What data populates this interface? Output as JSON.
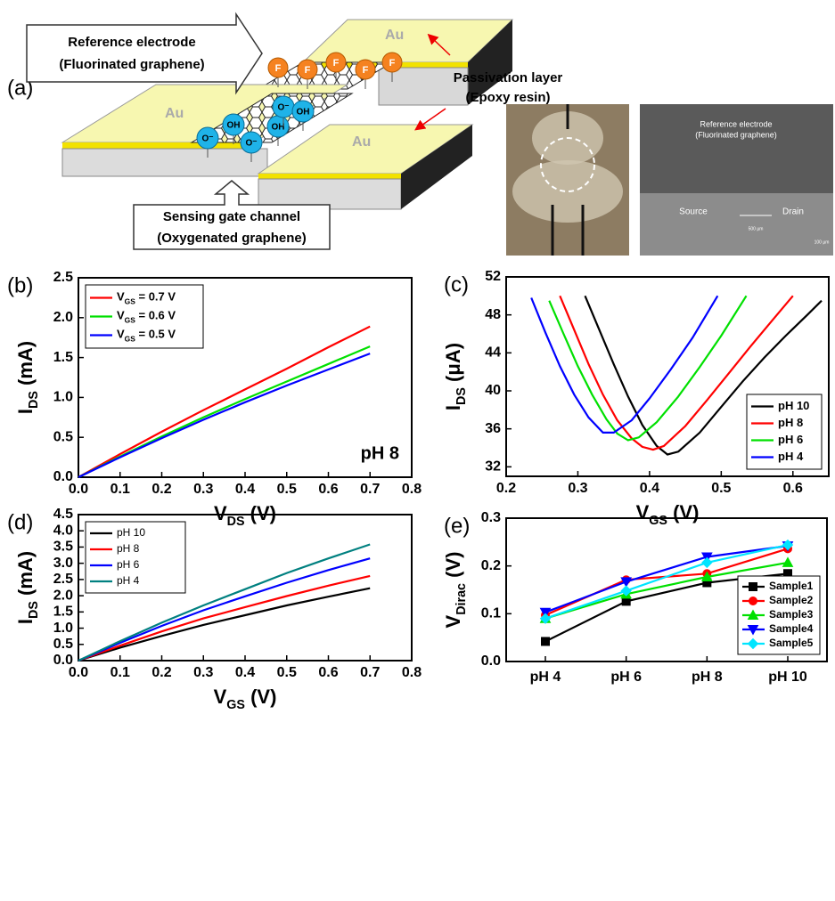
{
  "diagram": {
    "label": "(a)",
    "reference_box": [
      "Reference electrode",
      "(Fluorinated graphene)"
    ],
    "passivation": [
      "Passivation layer",
      "(Epoxy resin)"
    ],
    "sensing_box": [
      "Sensing gate channel",
      "(Oxygenated graphene)"
    ],
    "electrodes": [
      "Au",
      "Au",
      "Au"
    ],
    "fluorine": [
      "F",
      "F",
      "F",
      "F",
      "F"
    ],
    "ions": [
      "O⁻",
      "OH",
      "O⁻",
      "OH",
      "O⁻",
      "OH"
    ],
    "sem": {
      "title": [
        "Reference electrode",
        "(Fluorinated graphene)"
      ],
      "source": "Source",
      "drain": "Drain",
      "scale_gap": "500 µm",
      "scale_bar": "100 µm"
    }
  },
  "chart_data": [
    {
      "type": "line",
      "label": "(b)",
      "xlabel": [
        "V",
        "DS",
        " (V)"
      ],
      "ylabel": [
        "I",
        "DS",
        " (mA)"
      ],
      "xlim": [
        0,
        0.8
      ],
      "xticks": [
        {
          "value": 0,
          "label": "0.0"
        },
        0.1,
        0.2,
        0.3,
        0.4,
        0.5,
        0.6,
        0.7,
        0.8
      ],
      "ylim": [
        0,
        2.5
      ],
      "yticks": [
        {
          "value": 0,
          "label": "0.0"
        },
        0.5,
        {
          "value": 1,
          "label": "1.0"
        },
        1.5,
        {
          "value": 2,
          "label": "2.0"
        },
        2.5
      ],
      "x": [
        0,
        0.1,
        0.2,
        0.3,
        0.4,
        0.5,
        0.6,
        0.7
      ],
      "series": [
        {
          "name": [
            "V",
            "GS",
            " = 0.7 V"
          ],
          "color": "#ff0000",
          "values": [
            0,
            0.29,
            0.57,
            0.84,
            1.1,
            1.36,
            1.63,
            1.89
          ]
        },
        {
          "name": [
            "V",
            "GS",
            " = 0.6 V"
          ],
          "color": "#00e000",
          "values": [
            0,
            0.26,
            0.51,
            0.75,
            0.98,
            1.2,
            1.42,
            1.64
          ]
        },
        {
          "name": [
            "V",
            "GS",
            " = 0.5 V"
          ],
          "color": "#0000ff",
          "values": [
            0,
            0.25,
            0.49,
            0.72,
            0.94,
            1.15,
            1.35,
            1.55
          ]
        }
      ],
      "legend": "upper left",
      "annotation": "pH 8"
    },
    {
      "type": "line",
      "label": "(c)",
      "xlabel": [
        "V",
        "GS",
        " (V)"
      ],
      "ylabel": [
        "I",
        "DS",
        " (μA)"
      ],
      "xlim": [
        0.2,
        0.65
      ],
      "xticks": [
        0.2,
        0.3,
        0.4,
        0.5,
        0.6
      ],
      "ylim": [
        31,
        52
      ],
      "yticks": [
        32,
        36,
        40,
        44,
        48,
        52
      ],
      "series": [
        {
          "name": "pH 10",
          "color": "#000000",
          "x": [
            0.31,
            0.33,
            0.35,
            0.37,
            0.39,
            0.41,
            0.425,
            0.44,
            0.47,
            0.5,
            0.53,
            0.56,
            0.59,
            0.62,
            0.64
          ],
          "values": [
            50,
            46.4,
            42.8,
            39.4,
            36.4,
            34.2,
            33.3,
            33.6,
            35.6,
            38.3,
            41,
            43.5,
            45.8,
            48,
            49.5
          ]
        },
        {
          "name": "pH 8",
          "color": "#ff0000",
          "x": [
            0.275,
            0.295,
            0.315,
            0.335,
            0.355,
            0.375,
            0.39,
            0.405,
            0.42,
            0.45,
            0.48,
            0.51,
            0.54,
            0.57,
            0.6
          ],
          "values": [
            50,
            46.4,
            42.8,
            39.6,
            36.9,
            35,
            34.1,
            33.8,
            34.2,
            36.3,
            39,
            41.8,
            44.6,
            47.3,
            50
          ]
        },
        {
          "name": "pH 6",
          "color": "#00e000",
          "x": [
            0.26,
            0.28,
            0.3,
            0.32,
            0.34,
            0.355,
            0.37,
            0.385,
            0.41,
            0.44,
            0.47,
            0.5,
            0.535
          ],
          "values": [
            49.5,
            46,
            42.6,
            39.6,
            37,
            35.5,
            34.8,
            35.1,
            36.7,
            39.4,
            42.5,
            45.8,
            50
          ]
        },
        {
          "name": "pH 4",
          "color": "#0000ff",
          "x": [
            0.235,
            0.255,
            0.275,
            0.295,
            0.315,
            0.335,
            0.35,
            0.375,
            0.4,
            0.43,
            0.46,
            0.495
          ],
          "values": [
            49.8,
            46.1,
            42.6,
            39.6,
            37.2,
            35.6,
            35.6,
            36.9,
            39.2,
            42.3,
            45.6,
            50
          ]
        }
      ],
      "legend": "lower right"
    },
    {
      "type": "line",
      "label": "(d)",
      "xlabel": [
        "V",
        "GS",
        " (V)"
      ],
      "ylabel": [
        "I",
        "DS",
        " (mA)"
      ],
      "xlim": [
        0,
        0.8
      ],
      "xticks": [
        {
          "value": 0,
          "label": "0.0"
        },
        0.1,
        0.2,
        0.3,
        0.4,
        0.5,
        0.6,
        0.7,
        0.8
      ],
      "ylim": [
        0,
        4.5
      ],
      "yticks": [
        {
          "value": 0,
          "label": "0.0"
        },
        0.5,
        {
          "value": 1,
          "label": "1.0"
        },
        1.5,
        {
          "value": 2,
          "label": "2.0"
        },
        2.5,
        {
          "value": 3,
          "label": "3.0"
        },
        3.5,
        {
          "value": 4,
          "label": "4.0"
        },
        4.5
      ],
      "x": [
        0,
        0.1,
        0.2,
        0.3,
        0.4,
        0.5,
        0.6,
        0.7
      ],
      "series": [
        {
          "name": "pH 10",
          "color": "#000000",
          "values": [
            0,
            0.4,
            0.76,
            1.1,
            1.4,
            1.7,
            1.97,
            2.23
          ]
        },
        {
          "name": "pH 8",
          "color": "#ff0000",
          "values": [
            0,
            0.46,
            0.9,
            1.3,
            1.65,
            1.99,
            2.31,
            2.61
          ]
        },
        {
          "name": "pH 6",
          "color": "#0000ff",
          "values": [
            0,
            0.55,
            1.07,
            1.55,
            1.98,
            2.4,
            2.79,
            3.15
          ]
        },
        {
          "name": "pH 4",
          "color": "#008080",
          "values": [
            0,
            0.6,
            1.17,
            1.7,
            2.2,
            2.7,
            3.15,
            3.58
          ]
        }
      ],
      "legend": "upper left"
    },
    {
      "type": "line",
      "label": "(e)",
      "ylabel": [
        "V",
        "Dirac",
        " (V)"
      ],
      "categories": [
        "pH 4",
        "pH 6",
        "pH 8",
        "pH 10"
      ],
      "ylim": [
        0,
        0.3
      ],
      "yticks": [
        {
          "value": 0,
          "label": "0.0"
        },
        0.1,
        0.2,
        0.3
      ],
      "series": [
        {
          "name": "Sample1",
          "color": "#000000",
          "marker": "square",
          "values": [
            0.042,
            0.126,
            0.165,
            0.184
          ]
        },
        {
          "name": "Sample2",
          "color": "#ff0000",
          "marker": "circle",
          "values": [
            0.097,
            0.171,
            0.184,
            0.236
          ]
        },
        {
          "name": "Sample3",
          "color": "#00e000",
          "marker": "triangle-up",
          "values": [
            0.09,
            0.141,
            0.177,
            0.207
          ]
        },
        {
          "name": "Sample4",
          "color": "#0000ff",
          "marker": "triangle-down",
          "values": [
            0.103,
            0.167,
            0.219,
            0.242
          ]
        },
        {
          "name": "Sample5",
          "color": "#00e5ff",
          "marker": "diamond",
          "values": [
            0.09,
            0.148,
            0.207,
            0.244
          ]
        }
      ],
      "legend": "lower right"
    }
  ]
}
